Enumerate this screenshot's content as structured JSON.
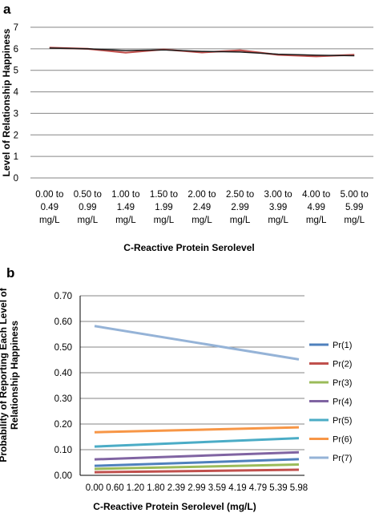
{
  "chart_data": [
    {
      "panel": "a",
      "type": "line",
      "xlabel": "C-Reactive Protein Serolevel",
      "ylabel": "Level of Relationship Happiness",
      "ylim": [
        0,
        7
      ],
      "yticks": [
        "0",
        "1",
        "2",
        "3",
        "4",
        "5",
        "6",
        "7"
      ],
      "grid": true,
      "categories": [
        [
          "0.00 to",
          "0.49",
          "mg/L"
        ],
        [
          "0.50 to",
          "0.99",
          "mg/L"
        ],
        [
          "1.00 to",
          "1.49",
          "mg/L"
        ],
        [
          "1.50 to",
          "1.99",
          "mg/L"
        ],
        [
          "2.00 to",
          "2.49",
          "mg/L"
        ],
        [
          "2.50 to",
          "2.99",
          "mg/L"
        ],
        [
          "3.00 to",
          "3.99",
          "mg/L"
        ],
        [
          "4.00 to",
          "4.99",
          "mg/L"
        ],
        [
          "5.00 to",
          "5.99",
          "mg/L"
        ]
      ],
      "series": [
        {
          "color": "#c0504d",
          "values": [
            6.05,
            6.0,
            5.82,
            5.97,
            5.83,
            5.93,
            5.72,
            5.65,
            5.72
          ]
        },
        {
          "color": "#1a1a1a",
          "values": [
            6.03,
            6.0,
            5.92,
            5.95,
            5.88,
            5.85,
            5.75,
            5.7,
            5.68
          ]
        }
      ]
    },
    {
      "panel": "b",
      "type": "line",
      "xlabel": "C-Reactive Protein Serolevel (mg/L)",
      "ylabel": [
        "Probability of Reporting Each Level of",
        "Relationship Happiness"
      ],
      "ylim": [
        0,
        0.7
      ],
      "yticks": [
        "0.00",
        "0.10",
        "0.20",
        "0.30",
        "0.40",
        "0.50",
        "0.60",
        "0.70"
      ],
      "grid": true,
      "legend_position": "right",
      "x": [
        "0.00",
        "0.60",
        "1.20",
        "1.80",
        "2.39",
        "2.99",
        "3.59",
        "4.19",
        "4.79",
        "5.39",
        "5.98"
      ],
      "series": [
        {
          "name": "Pr(1)",
          "color": "#4f81bd",
          "start": 0.037,
          "end": 0.063
        },
        {
          "name": "Pr(2)",
          "color": "#c0504d",
          "start": 0.012,
          "end": 0.022
        },
        {
          "name": "Pr(3)",
          "color": "#9bbb59",
          "start": 0.025,
          "end": 0.042
        },
        {
          "name": "Pr(4)",
          "color": "#8064a2",
          "start": 0.062,
          "end": 0.09
        },
        {
          "name": "Pr(5)",
          "color": "#4bacc6",
          "start": 0.112,
          "end": 0.145
        },
        {
          "name": "Pr(6)",
          "color": "#f79646",
          "start": 0.168,
          "end": 0.187
        },
        {
          "name": "Pr(7)",
          "color": "#95b3d7",
          "start": 0.582,
          "end": 0.452
        }
      ]
    }
  ]
}
